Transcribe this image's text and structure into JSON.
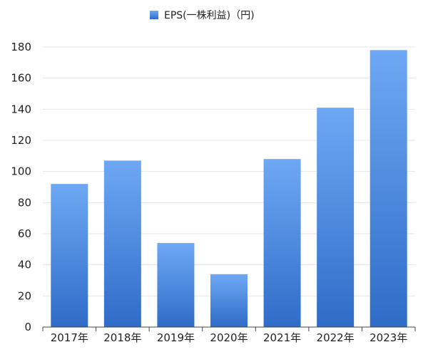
{
  "chart_data": {
    "type": "bar",
    "title": "",
    "xlabel": "",
    "ylabel": "",
    "categories": [
      "2017年",
      "2018年",
      "2019年",
      "2020年",
      "2021年",
      "2022年",
      "2023年"
    ],
    "series": [
      {
        "name": "EPS(一株利益)（円)",
        "values": [
          92,
          107,
          54,
          34,
          108,
          141,
          178
        ]
      }
    ],
    "ylim": [
      0,
      180
    ],
    "yticks": [
      0,
      20,
      40,
      60,
      80,
      100,
      120,
      140,
      160,
      180
    ],
    "ytick_labels": [
      "0",
      "20",
      "40",
      "60",
      "80",
      "100",
      "120",
      "140",
      "160",
      "180"
    ],
    "grid": true,
    "legend_position": "top-center",
    "colors": {
      "bar_top": "#6ea8f4",
      "bar_bottom": "#2f6cc8",
      "grid": "#e4e4e4",
      "axis": "#444444"
    }
  }
}
